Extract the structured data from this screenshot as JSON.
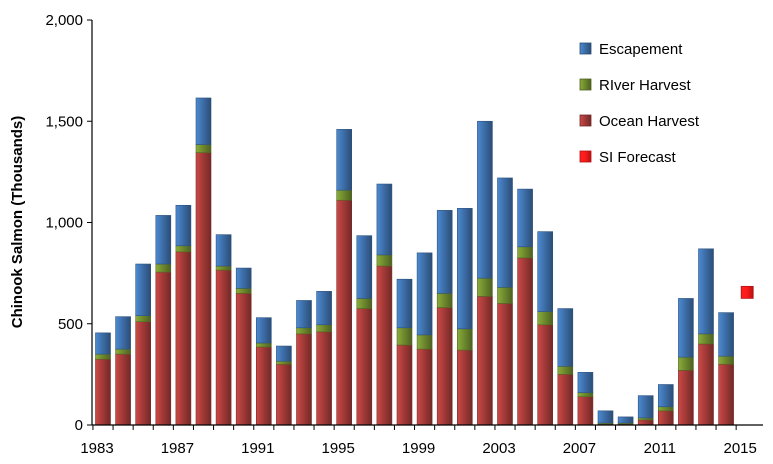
{
  "chart_data": {
    "type": "bar",
    "stacked": true,
    "ylabel": "Chinook Salmon (Thousands)",
    "xlabel": "",
    "ylim": [
      0,
      2000
    ],
    "yticks": [
      0,
      500,
      1000,
      1500,
      2000
    ],
    "ytick_labels": [
      "0",
      "500",
      "1,000",
      "1,500",
      "2,000"
    ],
    "x_tick_labels": [
      "1983",
      "1987",
      "1991",
      "1995",
      "1999",
      "2003",
      "2007",
      "2011",
      "2015"
    ],
    "x_tick_years": [
      1983,
      1987,
      1991,
      1995,
      1999,
      2003,
      2007,
      2011,
      2015
    ],
    "legend_position": "top-right",
    "categories": [
      1983,
      1984,
      1985,
      1986,
      1987,
      1988,
      1989,
      1990,
      1991,
      1992,
      1993,
      1994,
      1995,
      1996,
      1997,
      1998,
      1999,
      2000,
      2001,
      2002,
      2003,
      2004,
      2005,
      2006,
      2007,
      2008,
      2009,
      2010,
      2011,
      2012,
      2013,
      2014
    ],
    "series": [
      {
        "name": "Ocean Harvest",
        "color": "#a33a38",
        "values": [
          325,
          350,
          510,
          755,
          855,
          1345,
          765,
          650,
          385,
          300,
          450,
          460,
          1110,
          575,
          785,
          395,
          375,
          580,
          370,
          635,
          600,
          825,
          495,
          250,
          140,
          5,
          5,
          25,
          70,
          270,
          400,
          300
        ]
      },
      {
        "name": "RIver Harvest",
        "color": "#6e8a2e",
        "values": [
          25,
          25,
          30,
          40,
          30,
          40,
          20,
          25,
          20,
          15,
          30,
          35,
          50,
          50,
          55,
          85,
          70,
          70,
          105,
          90,
          80,
          55,
          65,
          40,
          20,
          5,
          5,
          10,
          20,
          65,
          50,
          40
        ]
      },
      {
        "name": "Escapement",
        "color": "#3d6ea8",
        "values": [
          105,
          160,
          255,
          240,
          200,
          230,
          155,
          100,
          125,
          75,
          135,
          165,
          300,
          310,
          350,
          240,
          405,
          410,
          595,
          775,
          540,
          285,
          395,
          285,
          100,
          60,
          30,
          110,
          110,
          290,
          420,
          215
        ]
      }
    ],
    "points": [
      {
        "name": "SI Forecast",
        "color": "#ff1a1a",
        "x": 2015,
        "y": 655
      }
    ],
    "legend": [
      {
        "name": "Escapement",
        "color": "#3d6ea8",
        "marker": "square"
      },
      {
        "name": "RIver Harvest",
        "color": "#6e8a2e",
        "marker": "square"
      },
      {
        "name": "Ocean Harvest",
        "color": "#a33a38",
        "marker": "square"
      },
      {
        "name": "SI Forecast",
        "color": "#ff1a1a",
        "marker": "square"
      }
    ]
  }
}
